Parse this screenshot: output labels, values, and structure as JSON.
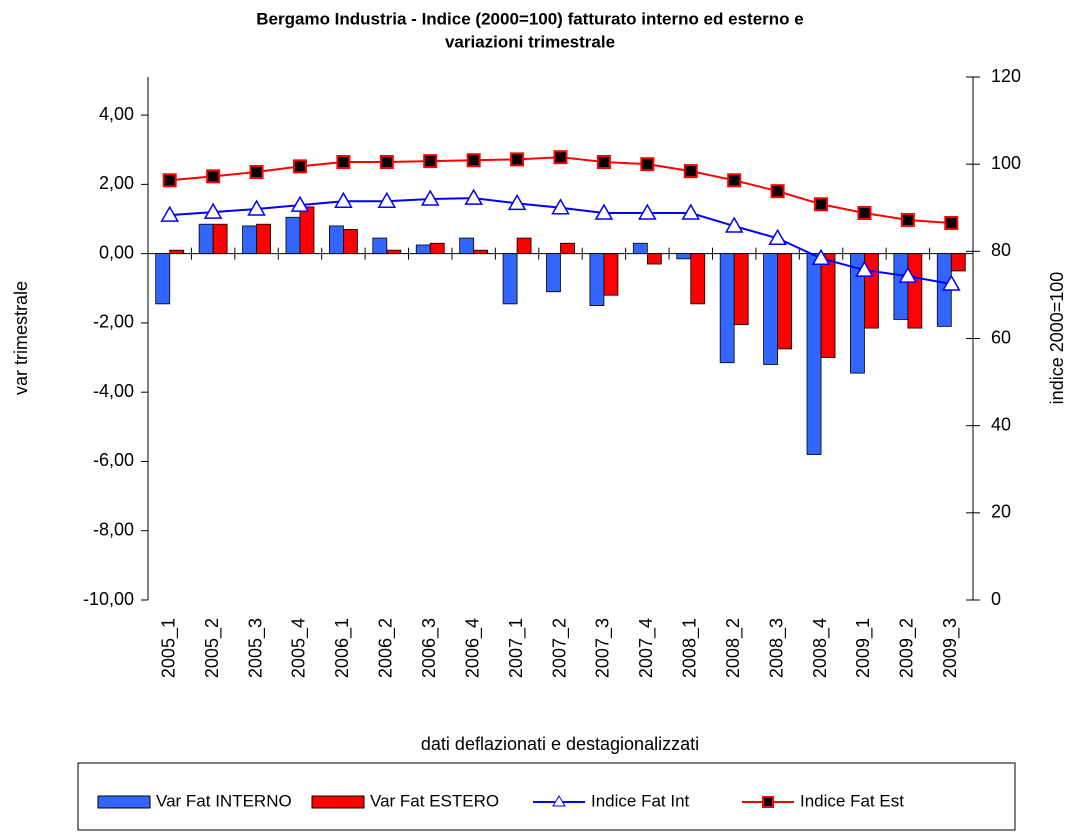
{
  "chart_data": {
    "type": "bar-line",
    "title": [
      "Bergamo Industria - Indice (2000=100) fatturato interno ed esterno e",
      "variazioni trimestrale"
    ],
    "y_label": "var trimestrale",
    "y2_label": "indice 2000=100",
    "x_label": "dati deflazionati e destagionalizzati",
    "categories": [
      "2005_1",
      "2005_2",
      "2005_3",
      "2005_4",
      "2006_1",
      "2006_2",
      "2006_3",
      "2006_4",
      "2007_1",
      "2007_2",
      "2007_3",
      "2007_4",
      "2008_1",
      "2008_2",
      "2008_3",
      "2008_4",
      "2009_1",
      "2009_2",
      "2009_3"
    ],
    "series": [
      {
        "name": "Var Fat INTERNO",
        "type": "bar",
        "color": "#3366ff",
        "values": [
          -1.45,
          0.85,
          0.8,
          1.05,
          0.8,
          0.45,
          0.25,
          0.45,
          -1.45,
          -1.1,
          -1.5,
          0.3,
          -0.15,
          -3.15,
          -3.2,
          -5.8,
          -3.45,
          -1.9,
          -2.1
        ]
      },
      {
        "name": "Var Fat ESTERO",
        "type": "bar",
        "color": "#ff0000",
        "values": [
          0.1,
          0.85,
          0.85,
          1.35,
          0.7,
          0.1,
          0.3,
          0.1,
          0.45,
          0.3,
          -1.2,
          -0.3,
          -1.45,
          -2.05,
          -2.75,
          -3.0,
          -2.15,
          -2.15,
          -0.5
        ]
      },
      {
        "name": "Indice Fat Int",
        "type": "line",
        "axis": "y2",
        "color": "#0000ff",
        "marker": "triangle",
        "values": [
          88.3,
          89,
          89.7,
          90.6,
          91.5,
          91.5,
          92,
          92.2,
          91,
          90,
          88.8,
          88.8,
          88.8,
          85.8,
          83,
          78.4,
          75.7,
          74.3,
          72.5
        ]
      },
      {
        "name": "Indice Fat Est",
        "type": "line",
        "axis": "y2",
        "color": "#ff0000",
        "marker": "square",
        "values": [
          96.3,
          97.2,
          98.2,
          99.5,
          100.5,
          100.5,
          100.7,
          100.9,
          101.1,
          101.6,
          100.5,
          100,
          98.4,
          96.3,
          93.8,
          90.8,
          88.8,
          87.2,
          86.5
        ]
      }
    ],
    "ylim": [
      -10,
      5.1
    ],
    "yticks": [
      {
        "value": -10,
        "label": "-10,00"
      },
      {
        "value": -8,
        "label": "-8,00"
      },
      {
        "value": -6,
        "label": "-6,00"
      },
      {
        "value": -4,
        "label": "-4,00"
      },
      {
        "value": -2,
        "label": "-2,00"
      },
      {
        "value": 0,
        "label": "0,00"
      },
      {
        "value": 2,
        "label": "2,00"
      },
      {
        "value": 4,
        "label": "4,00"
      }
    ],
    "y2lim": [
      0,
      120
    ],
    "y2ticks": [
      0,
      20,
      40,
      60,
      80,
      100,
      120
    ],
    "legend": "bottom"
  }
}
